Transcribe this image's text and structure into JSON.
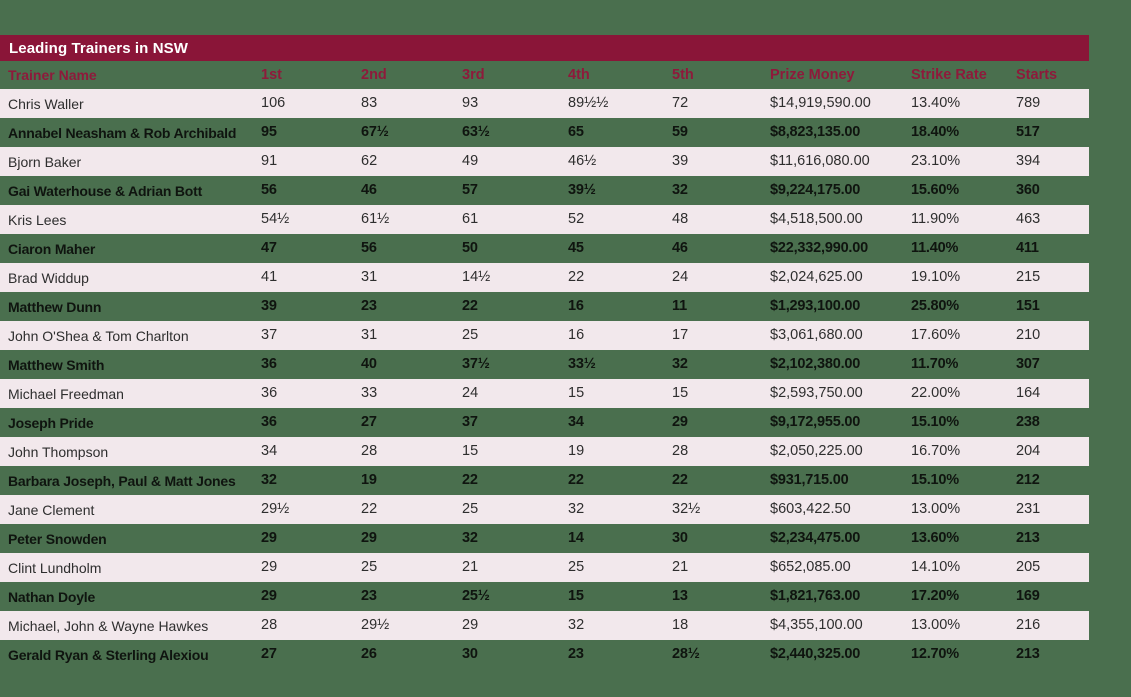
{
  "title": "Leading Trainers in NSW",
  "colors": {
    "background_green": "#4A6F4E",
    "title_bar_maroon": "#8A1538",
    "header_text_maroon": "#8E1A3B",
    "row_pink": "#F2E8EC",
    "title_text": "#FFFFFF",
    "row_text_dark": "#0F140F"
  },
  "chart_data": {
    "type": "table",
    "title": "Leading Trainers in NSW",
    "columns": [
      "Trainer Name",
      "1st",
      "2nd",
      "3rd",
      "4th",
      "5th",
      "Prize Money",
      "Strike Rate",
      "Starts"
    ],
    "rows": [
      [
        "Chris Waller",
        "106",
        "83",
        "93",
        "89½½",
        "72",
        "$14,919,590.00",
        "13.40%",
        "789"
      ],
      [
        "Annabel Neasham & Rob Archibald",
        "95",
        "67½",
        "63½",
        "65",
        "59",
        "$8,823,135.00",
        "18.40%",
        "517"
      ],
      [
        "Bjorn Baker",
        "91",
        "62",
        "49",
        "46½",
        "39",
        "$11,616,080.00",
        "23.10%",
        "394"
      ],
      [
        "Gai Waterhouse & Adrian Bott",
        "56",
        "46",
        "57",
        "39½",
        "32",
        "$9,224,175.00",
        "15.60%",
        "360"
      ],
      [
        "Kris Lees",
        "54½",
        "61½",
        "61",
        "52",
        "48",
        "$4,518,500.00",
        "11.90%",
        "463"
      ],
      [
        "Ciaron Maher",
        "47",
        "56",
        "50",
        "45",
        "46",
        "$22,332,990.00",
        "11.40%",
        "411"
      ],
      [
        "Brad Widdup",
        "41",
        "31",
        "14½",
        "22",
        "24",
        "$2,024,625.00",
        "19.10%",
        "215"
      ],
      [
        "Matthew Dunn",
        "39",
        "23",
        "22",
        "16",
        "11",
        "$1,293,100.00",
        "25.80%",
        "151"
      ],
      [
        "John O'Shea & Tom Charlton",
        "37",
        "31",
        "25",
        "16",
        "17",
        "$3,061,680.00",
        "17.60%",
        "210"
      ],
      [
        "Matthew Smith",
        "36",
        "40",
        "37½",
        "33½",
        "32",
        "$2,102,380.00",
        "11.70%",
        "307"
      ],
      [
        "Michael Freedman",
        "36",
        "33",
        "24",
        "15",
        "15",
        "$2,593,750.00",
        "22.00%",
        "164"
      ],
      [
        "Joseph Pride",
        "36",
        "27",
        "37",
        "34",
        "29",
        "$9,172,955.00",
        "15.10%",
        "238"
      ],
      [
        "John Thompson",
        "34",
        "28",
        "15",
        "19",
        "28",
        "$2,050,225.00",
        "16.70%",
        "204"
      ],
      [
        "Barbara Joseph, Paul & Matt Jones",
        "32",
        "19",
        "22",
        "22",
        "22",
        "$931,715.00",
        "15.10%",
        "212"
      ],
      [
        "Jane Clement",
        "29½",
        "22",
        "25",
        "32",
        "32½",
        "$603,422.50",
        "13.00%",
        "231"
      ],
      [
        "Peter Snowden",
        "29",
        "29",
        "32",
        "14",
        "30",
        "$2,234,475.00",
        "13.60%",
        "213"
      ],
      [
        "Clint Lundholm",
        "29",
        "25",
        "21",
        "25",
        "21",
        "$652,085.00",
        "14.10%",
        "205"
      ],
      [
        "Nathan Doyle",
        "29",
        "23",
        "25½",
        "15",
        "13",
        "$1,821,763.00",
        "17.20%",
        "169"
      ],
      [
        "Michael, John & Wayne Hawkes",
        "28",
        "29½",
        "29",
        "32",
        "18",
        "$4,355,100.00",
        "13.00%",
        "216"
      ],
      [
        "Gerald Ryan & Sterling Alexiou",
        "27",
        "26",
        "30",
        "23",
        "28½",
        "$2,440,325.00",
        "12.70%",
        "213"
      ]
    ]
  }
}
